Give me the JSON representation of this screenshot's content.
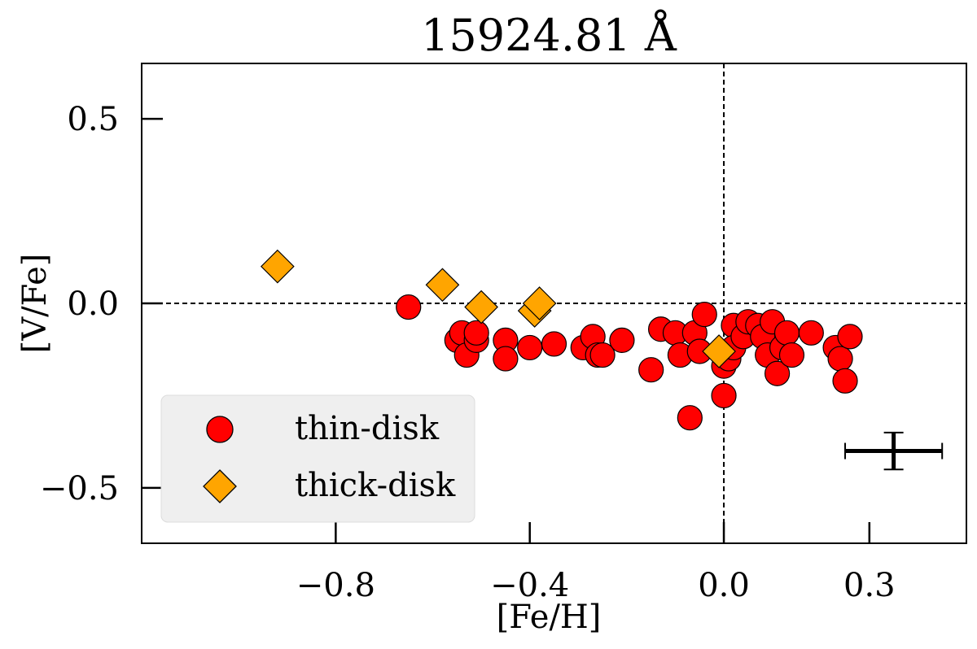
{
  "chart_data": {
    "type": "scatter",
    "title": "15924.81 Å",
    "xlabel": "[Fe/H]",
    "ylabel": "[V/Fe]",
    "xlim": [
      -1.2,
      0.5
    ],
    "ylim": [
      -0.65,
      0.65
    ],
    "xticks": [
      -0.8,
      -0.4,
      0.0,
      0.3
    ],
    "xtick_labels": [
      "−0.8",
      "−0.4",
      "0.0",
      "0.3"
    ],
    "yticks": [
      0.5,
      0.0,
      -0.5
    ],
    "ytick_labels": [
      "0.5",
      "0.0",
      "−0.5"
    ],
    "reference_lines": {
      "x": 0.0,
      "y": 0.0
    },
    "legend_position": "lower-left",
    "series": [
      {
        "name": "thin-disk",
        "marker": "circle",
        "color": "#ff0000",
        "points": [
          [
            -0.65,
            -0.01
          ],
          [
            -0.55,
            -0.1
          ],
          [
            -0.54,
            -0.08
          ],
          [
            -0.53,
            -0.14
          ],
          [
            -0.51,
            -0.1
          ],
          [
            -0.51,
            -0.08
          ],
          [
            -0.45,
            -0.1
          ],
          [
            -0.45,
            -0.15
          ],
          [
            -0.4,
            -0.12
          ],
          [
            -0.35,
            -0.11
          ],
          [
            -0.29,
            -0.12
          ],
          [
            -0.27,
            -0.09
          ],
          [
            -0.26,
            -0.14
          ],
          [
            -0.25,
            -0.14
          ],
          [
            -0.21,
            -0.1
          ],
          [
            -0.15,
            -0.18
          ],
          [
            -0.13,
            -0.07
          ],
          [
            -0.1,
            -0.08
          ],
          [
            -0.09,
            -0.14
          ],
          [
            -0.07,
            -0.31
          ],
          [
            -0.06,
            -0.08
          ],
          [
            -0.05,
            -0.13
          ],
          [
            -0.04,
            -0.03
          ],
          [
            0.0,
            -0.17
          ],
          [
            0.0,
            -0.25
          ],
          [
            0.01,
            -0.15
          ],
          [
            0.02,
            -0.06
          ],
          [
            0.02,
            -0.12
          ],
          [
            0.04,
            -0.09
          ],
          [
            0.05,
            -0.05
          ],
          [
            0.07,
            -0.06
          ],
          [
            0.08,
            -0.09
          ],
          [
            0.09,
            -0.14
          ],
          [
            0.1,
            -0.05
          ],
          [
            0.11,
            -0.19
          ],
          [
            0.12,
            -0.12
          ],
          [
            0.13,
            -0.08
          ],
          [
            0.14,
            -0.14
          ],
          [
            0.18,
            -0.08
          ],
          [
            0.23,
            -0.12
          ],
          [
            0.24,
            -0.15
          ],
          [
            0.25,
            -0.21
          ],
          [
            0.26,
            -0.09
          ]
        ]
      },
      {
        "name": "thick-disk",
        "marker": "diamond",
        "color": "#ffa500",
        "points": [
          [
            -0.92,
            0.1
          ],
          [
            -0.58,
            0.05
          ],
          [
            -0.5,
            -0.01
          ],
          [
            -0.39,
            -0.02
          ],
          [
            -0.38,
            -0.0
          ],
          [
            -0.01,
            -0.13
          ]
        ]
      }
    ],
    "error_bar": {
      "x": 0.35,
      "y": -0.4,
      "xerr": 0.1,
      "yerr": 0.05
    }
  }
}
